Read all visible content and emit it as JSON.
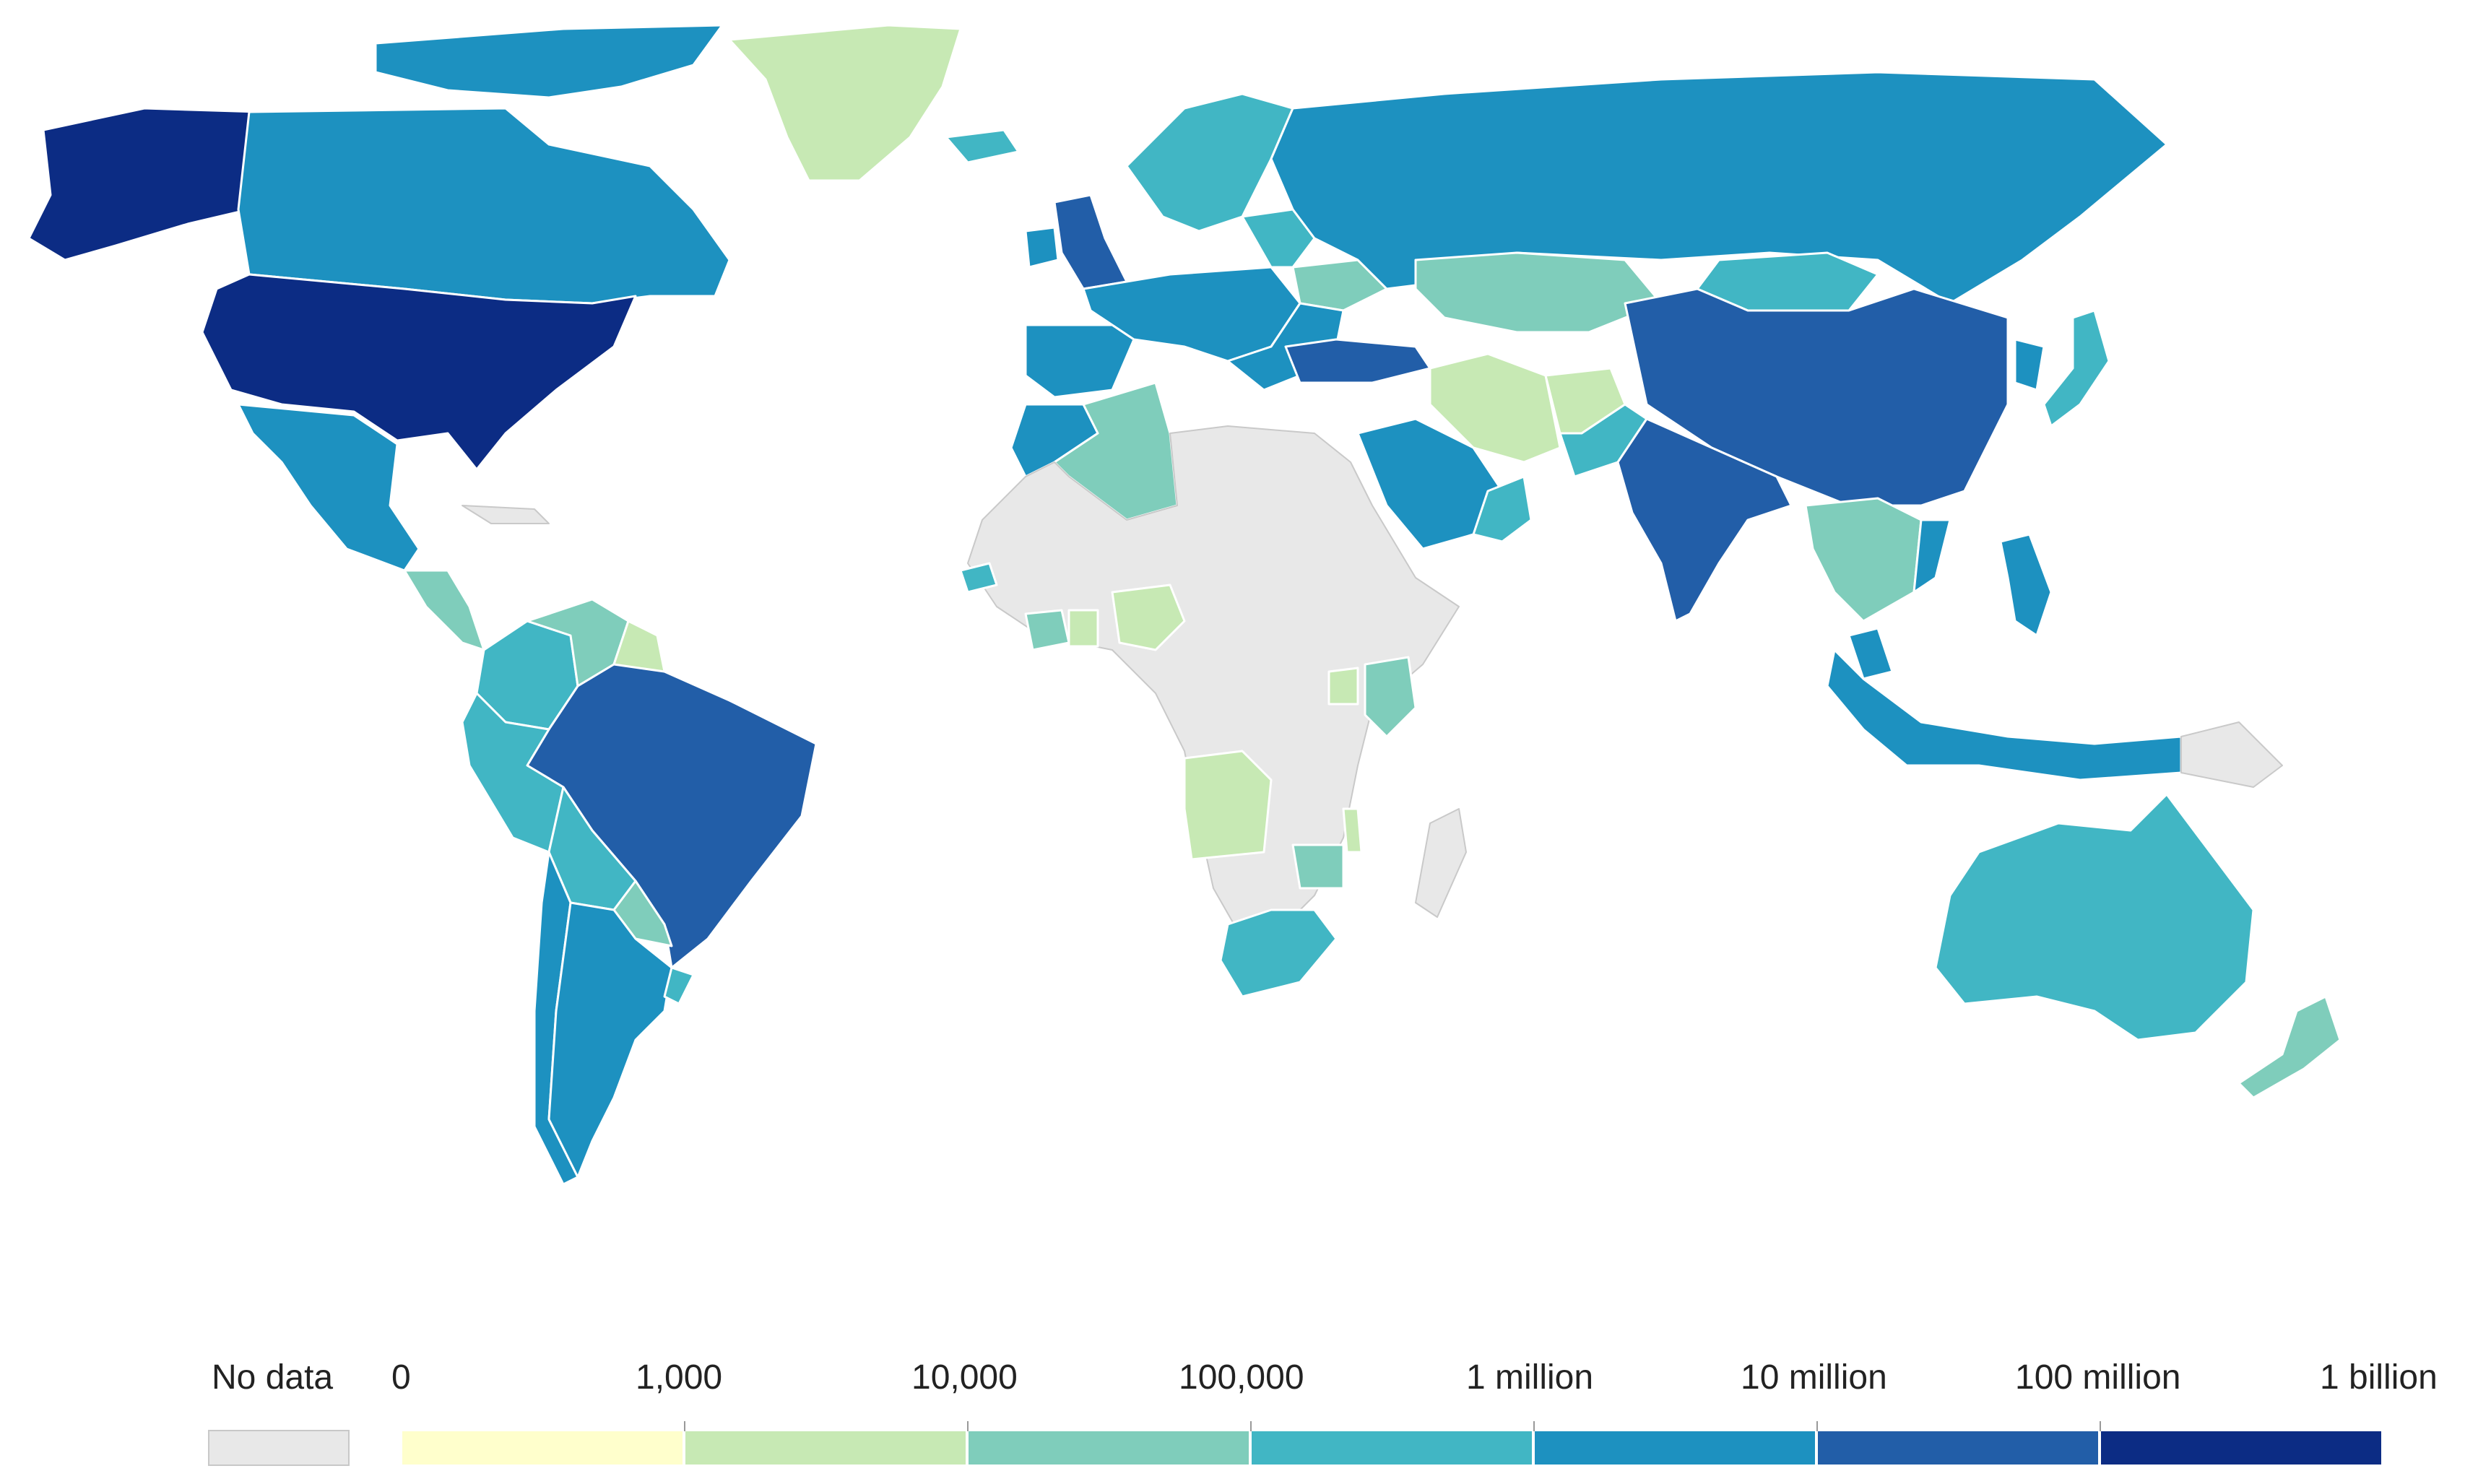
{
  "legend": {
    "no_data_label": "No data",
    "no_data_color": "#e8e8e8",
    "tick_labels": [
      "0",
      "1,000",
      "10,000",
      "100,000",
      "1 million",
      "10 million",
      "100 million",
      "1 billion"
    ],
    "bin_colors": [
      "#ffffcc",
      "#c7e9b4",
      "#7fcdbb",
      "#41b6c4",
      "#1d91c0",
      "#225ea8",
      "#0c2c84"
    ]
  },
  "map": {
    "ocean_color": "#ffffff",
    "regions": [
      {
        "name": "Alaska",
        "bin": 6
      },
      {
        "name": "Canada",
        "bin": 4
      },
      {
        "name": "Canadian Arctic",
        "bin": 4
      },
      {
        "name": "Greenland",
        "bin": 1
      },
      {
        "name": "United States",
        "bin": 6
      },
      {
        "name": "Mexico",
        "bin": 4
      },
      {
        "name": "Central America",
        "bin": 2
      },
      {
        "name": "Cuba",
        "bin": -1
      },
      {
        "name": "Colombia",
        "bin": 3
      },
      {
        "name": "Venezuela",
        "bin": 2
      },
      {
        "name": "Guyana",
        "bin": 1
      },
      {
        "name": "Brazil",
        "bin": 5
      },
      {
        "name": "Peru",
        "bin": 3
      },
      {
        "name": "Bolivia",
        "bin": 3
      },
      {
        "name": "Paraguay",
        "bin": 2
      },
      {
        "name": "Chile",
        "bin": 4
      },
      {
        "name": "Argentina",
        "bin": 4
      },
      {
        "name": "Uruguay",
        "bin": 3
      },
      {
        "name": "Iceland",
        "bin": 3
      },
      {
        "name": "United Kingdom",
        "bin": 5
      },
      {
        "name": "Ireland",
        "bin": 4
      },
      {
        "name": "Iberia",
        "bin": 4
      },
      {
        "name": "Western Europe",
        "bin": 4
      },
      {
        "name": "Scandinavia",
        "bin": 3
      },
      {
        "name": "Baltics and Belarus",
        "bin": 3
      },
      {
        "name": "Ukraine",
        "bin": 2
      },
      {
        "name": "Balkans",
        "bin": 4
      },
      {
        "name": "Russia",
        "bin": 4
      },
      {
        "name": "Turkey",
        "bin": 5
      },
      {
        "name": "Kazakhstan",
        "bin": 2
      },
      {
        "name": "Mongolia",
        "bin": 3
      },
      {
        "name": "China",
        "bin": 5
      },
      {
        "name": "Korea",
        "bin": 4
      },
      {
        "name": "Japan",
        "bin": 3
      },
      {
        "name": "Iran",
        "bin": 1
      },
      {
        "name": "Afghanistan",
        "bin": 1
      },
      {
        "name": "Pakistan",
        "bin": 3
      },
      {
        "name": "India",
        "bin": 5
      },
      {
        "name": "Saudi Arabia",
        "bin": 4
      },
      {
        "name": "Oman",
        "bin": 3
      },
      {
        "name": "Morocco",
        "bin": 4
      },
      {
        "name": "Algeria",
        "bin": 2
      },
      {
        "name": "Africa (no data)",
        "bin": -1
      },
      {
        "name": "Senegal",
        "bin": 3
      },
      {
        "name": "Ivory Coast",
        "bin": 2
      },
      {
        "name": "Ghana",
        "bin": 1
      },
      {
        "name": "Nigeria",
        "bin": 1
      },
      {
        "name": "Kenya",
        "bin": 2
      },
      {
        "name": "Uganda",
        "bin": 1
      },
      {
        "name": "Angola",
        "bin": 1
      },
      {
        "name": "Malawi",
        "bin": 1
      },
      {
        "name": "Zimbabwe",
        "bin": 2
      },
      {
        "name": "South Africa",
        "bin": 3
      },
      {
        "name": "Madagascar",
        "bin": -1
      },
      {
        "name": "Southeast Asia",
        "bin": 2
      },
      {
        "name": "Vietnam",
        "bin": 4
      },
      {
        "name": "Philippines",
        "bin": 4
      },
      {
        "name": "Malaysia",
        "bin": 4
      },
      {
        "name": "Indonesia",
        "bin": 4
      },
      {
        "name": "Papua New Guinea",
        "bin": -1
      },
      {
        "name": "Australia",
        "bin": 3
      },
      {
        "name": "New Zealand",
        "bin": 2
      }
    ]
  }
}
